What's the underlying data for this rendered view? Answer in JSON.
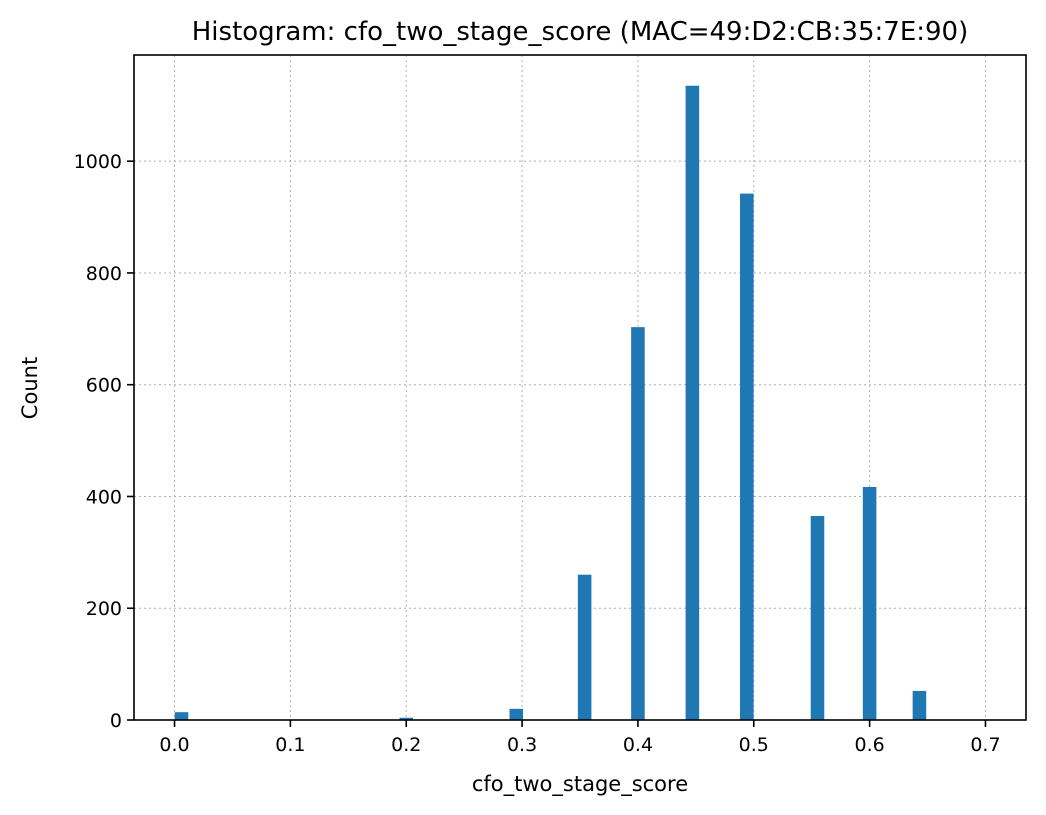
{
  "chart_data": {
    "type": "bar",
    "title": "Histogram: cfo_two_stage_score (MAC=49:D2:CB:35:7E:90)",
    "xlabel": "cfo_two_stage_score",
    "ylabel": "Count",
    "xlim": [
      -0.035,
      0.735
    ],
    "ylim": [
      0,
      1190
    ],
    "xticks": [
      0.0,
      0.1,
      0.2,
      0.3,
      0.4,
      0.5,
      0.6,
      0.7
    ],
    "xtick_labels": [
      "0.0",
      "0.1",
      "0.2",
      "0.3",
      "0.4",
      "0.5",
      "0.6",
      "0.7"
    ],
    "yticks": [
      0,
      200,
      400,
      600,
      800,
      1000
    ],
    "ytick_labels": [
      "0",
      "200",
      "400",
      "600",
      "800",
      "1000"
    ],
    "bin_width": 0.0117,
    "grid": true,
    "color": "#1f77b4",
    "bars": [
      {
        "x": 0.006,
        "value": 14
      },
      {
        "x": 0.2,
        "value": 4
      },
      {
        "x": 0.295,
        "value": 20
      },
      {
        "x": 0.354,
        "value": 260
      },
      {
        "x": 0.4,
        "value": 703
      },
      {
        "x": 0.447,
        "value": 1135
      },
      {
        "x": 0.494,
        "value": 942
      },
      {
        "x": 0.555,
        "value": 365
      },
      {
        "x": 0.6,
        "value": 417
      },
      {
        "x": 0.643,
        "value": 52
      }
    ]
  }
}
